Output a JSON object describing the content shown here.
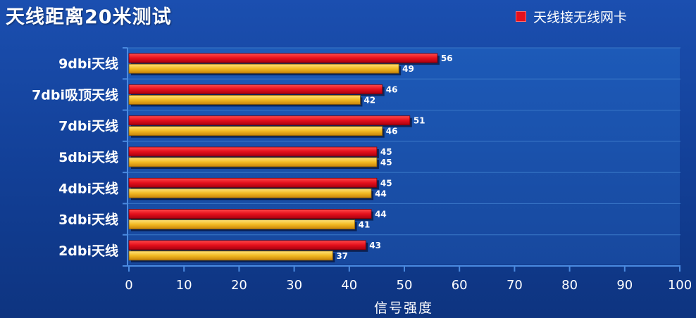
{
  "title": "天线距离20米测试",
  "legend": {
    "series_label": "天线接无线网卡",
    "swatch_color": "#e4101c"
  },
  "colors": {
    "series_red": "#e4101c",
    "series_yellow": "#f2b922",
    "background": "#1b4fb0",
    "grid": "#3a78c8"
  },
  "chart_data": {
    "type": "bar",
    "orientation": "horizontal",
    "title": "天线距离20米测试",
    "xlabel": "信号强度",
    "ylabel": "",
    "xlim": [
      0,
      100
    ],
    "xticks": [
      0,
      10,
      20,
      30,
      40,
      50,
      60,
      70,
      80,
      90,
      100
    ],
    "categories": [
      "9dbi天线",
      "7dbi吸顶天线",
      "7dbi天线",
      "5dbi天线",
      "4dbi天线",
      "3dbi天线",
      "2dbi天线"
    ],
    "series": [
      {
        "name": "天线接无线网卡",
        "color": "#e4101c",
        "values": [
          56,
          46,
          51,
          45,
          45,
          44,
          43
        ]
      },
      {
        "color": "#f2b922",
        "values": [
          49,
          42,
          46,
          45,
          44,
          41,
          37
        ]
      }
    ],
    "legend_position": "top-right",
    "grid": true
  }
}
